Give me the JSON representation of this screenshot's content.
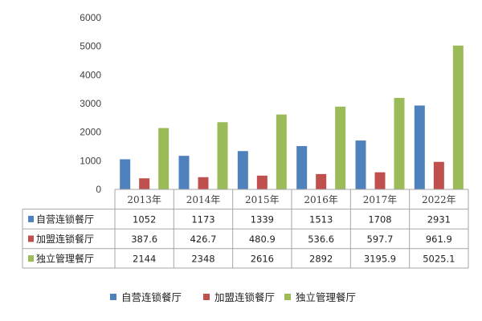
{
  "chart_data": {
    "type": "bar",
    "categories": [
      "2013年",
      "2014年",
      "2015年",
      "2016年",
      "2017年",
      "2022年"
    ],
    "series": [
      {
        "name": "自营连锁餐厅",
        "values": [
          1052,
          1173,
          1339,
          1513,
          1708,
          2931
        ],
        "display": [
          "1052",
          "1173",
          "1339",
          "1513",
          "1708",
          "2931"
        ],
        "color": "#4f81bd"
      },
      {
        "name": "加盟连锁餐厅",
        "values": [
          387.6,
          426.7,
          480.9,
          536.6,
          597.7,
          961.9
        ],
        "display": [
          "387.6",
          "426.7",
          "480.9",
          "536.6",
          "597.7",
          "961.9"
        ],
        "color": "#c0504d"
      },
      {
        "name": "独立管理餐厅",
        "values": [
          2144,
          2348,
          2616,
          2892,
          3195.9,
          5025.1
        ],
        "display": [
          "2144",
          "2348",
          "2616",
          "2892",
          "3195.9",
          "5025.1"
        ],
        "color": "#9bbb59"
      }
    ],
    "yticks": [
      "0",
      "1000",
      "2000",
      "3000",
      "4000",
      "5000",
      "6000"
    ],
    "ylim": [
      0,
      6000
    ],
    "grid": false,
    "data_table": true,
    "legend_position": "bottom"
  }
}
